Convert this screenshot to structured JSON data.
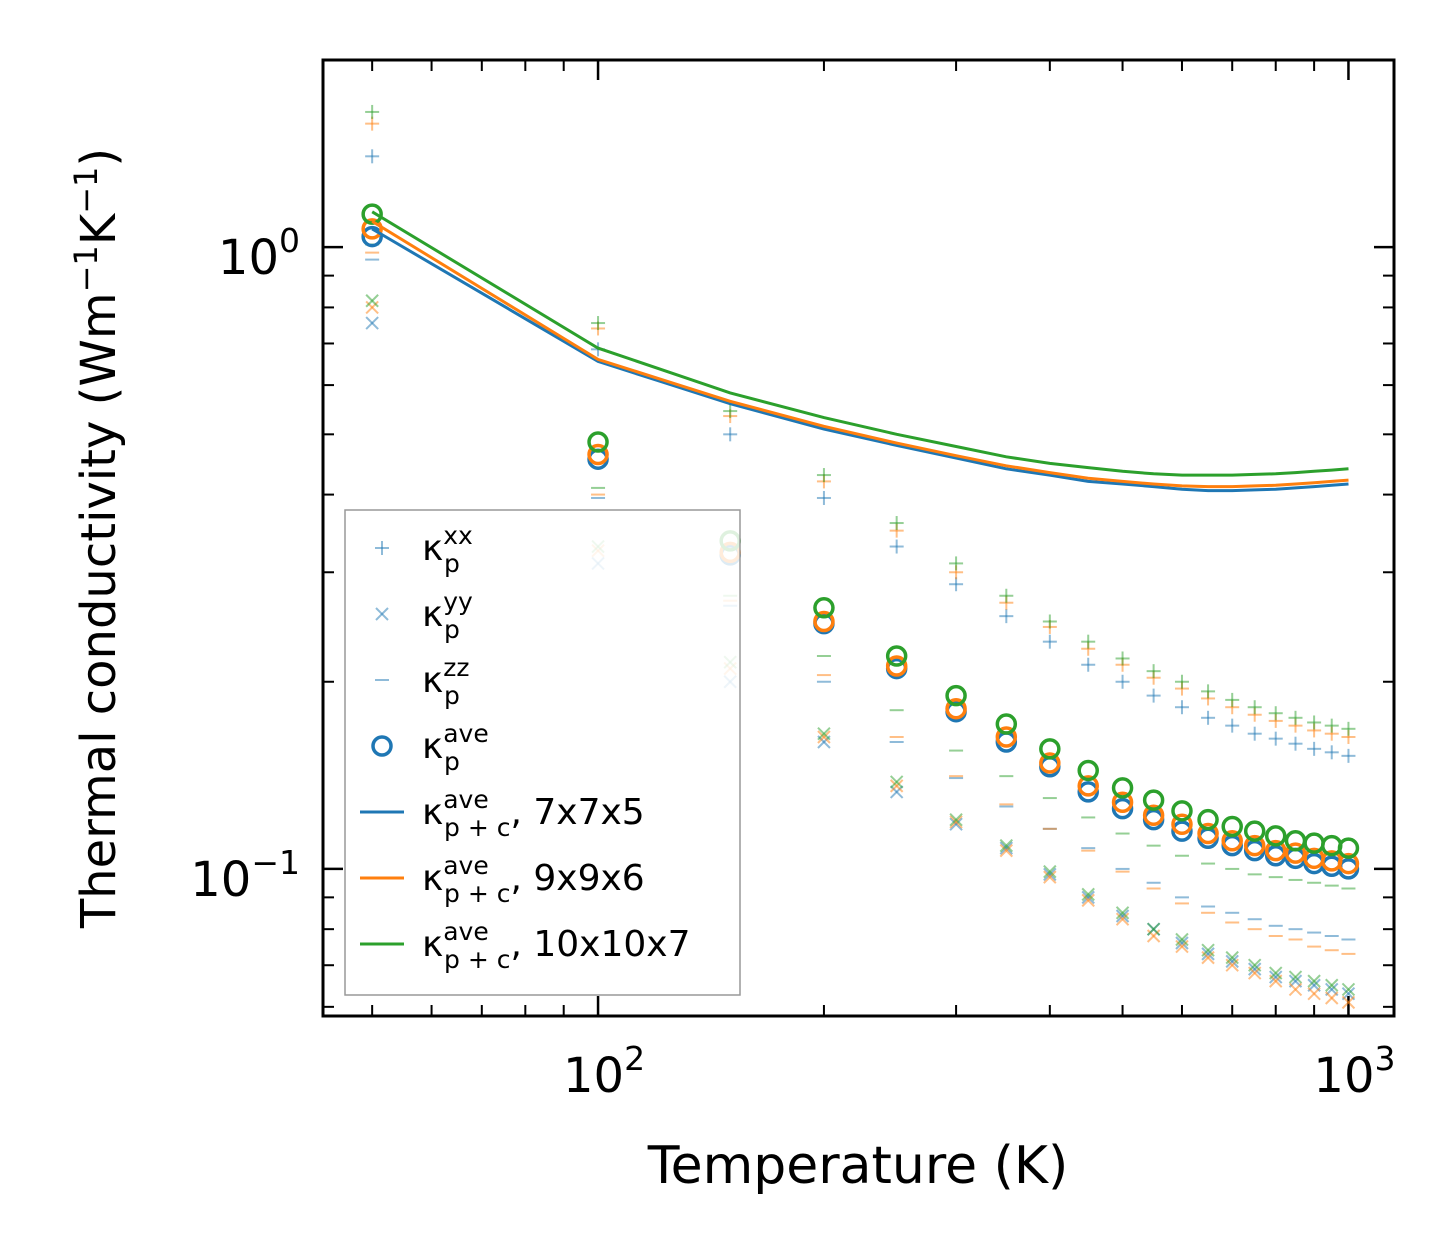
{
  "chart_data": {
    "type": "scatter",
    "title": "",
    "xlabel": "Temperature (K)",
    "ylabel_main": "Thermal conductivity (Wm",
    "ylabel_sup1": "−1",
    "ylabel_mid": "K",
    "ylabel_sup2": "−1",
    "ylabel_end": ")",
    "xscale": "log",
    "yscale": "log",
    "xlim": [
      43,
      1150
    ],
    "ylim": [
      0.058,
      2.0
    ],
    "grid": false,
    "legend_position": "left",
    "x_ticks": [
      {
        "base": "10",
        "exp": "2"
      },
      {
        "base": "10",
        "exp": "3"
      }
    ],
    "y_ticks": [
      {
        "base": "10",
        "exp": "0"
      },
      {
        "base": "10",
        "exp": "−1"
      }
    ],
    "colors": {
      "c7": "#1f77b4",
      "c9": "#ff7f0e",
      "c10": "#2ca02c"
    },
    "temperatures": [
      50,
      100,
      150,
      200,
      250,
      300,
      350,
      400,
      450,
      500,
      550,
      600,
      650,
      700,
      750,
      800,
      850,
      900,
      950,
      1000
    ],
    "legend": [
      {
        "sym": "κ",
        "sub": "p",
        "sup": "xx",
        "tail": "",
        "marker": "plus"
      },
      {
        "sym": "κ",
        "sub": "p",
        "sup": "yy",
        "tail": "",
        "marker": "cross"
      },
      {
        "sym": "κ",
        "sub": "p",
        "sup": "zz",
        "tail": "",
        "marker": "dash"
      },
      {
        "sym": "κ",
        "sub": "p",
        "sup": "ave",
        "tail": "",
        "marker": "circle"
      },
      {
        "sym": "κ",
        "sub": "p + c",
        "sup": "ave",
        "tail": ", 7x7x5",
        "marker": "line",
        "color": "#1f77b4"
      },
      {
        "sym": "κ",
        "sub": "p + c",
        "sup": "ave",
        "tail": ", 9x9x6",
        "marker": "line",
        "color": "#ff7f0e"
      },
      {
        "sym": "κ",
        "sub": "p + c",
        "sup": "ave",
        "tail": ", 10x10x7",
        "marker": "line",
        "color": "#2ca02c"
      }
    ],
    "series": [
      {
        "name": "7x7x5",
        "color": "#1f77b4",
        "kxx": [
          1.4,
          0.685,
          0.5,
          0.395,
          0.33,
          0.287,
          0.255,
          0.232,
          0.213,
          0.2,
          0.19,
          0.182,
          0.175,
          0.17,
          0.165,
          0.162,
          0.159,
          0.156,
          0.154,
          0.152
        ],
        "kyy": [
          0.755,
          0.31,
          0.2,
          0.16,
          0.133,
          0.118,
          0.108,
          0.098,
          0.09,
          0.084,
          0.08,
          0.076,
          0.073,
          0.071,
          0.069,
          0.067,
          0.066,
          0.065,
          0.064,
          0.063
        ],
        "kzz": [
          0.955,
          0.395,
          0.265,
          0.2,
          0.16,
          0.14,
          0.126,
          0.116,
          0.108,
          0.1,
          0.095,
          0.09,
          0.087,
          0.085,
          0.083,
          0.081,
          0.08,
          0.079,
          0.078,
          0.077
        ],
        "kave": [
          1.04,
          0.456,
          0.32,
          0.248,
          0.21,
          0.179,
          0.16,
          0.146,
          0.133,
          0.125,
          0.12,
          0.115,
          0.112,
          0.109,
          0.107,
          0.105,
          0.104,
          0.102,
          0.101,
          0.1
        ],
        "kpc": [
          1.07,
          0.655,
          0.56,
          0.51,
          0.48,
          0.458,
          0.44,
          0.43,
          0.42,
          0.416,
          0.412,
          0.408,
          0.406,
          0.406,
          0.407,
          0.408,
          0.41,
          0.412,
          0.414,
          0.416
        ]
      },
      {
        "name": "9x9x6",
        "color": "#ff7f0e",
        "kxx": [
          1.58,
          0.74,
          0.535,
          0.42,
          0.35,
          0.3,
          0.268,
          0.245,
          0.226,
          0.213,
          0.203,
          0.195,
          0.188,
          0.182,
          0.177,
          0.173,
          0.17,
          0.167,
          0.165,
          0.163
        ],
        "kyy": [
          0.8,
          0.325,
          0.21,
          0.163,
          0.136,
          0.119,
          0.107,
          0.097,
          0.089,
          0.083,
          0.078,
          0.075,
          0.072,
          0.07,
          0.068,
          0.066,
          0.064,
          0.063,
          0.062,
          0.061
        ],
        "kzz": [
          0.98,
          0.4,
          0.27,
          0.205,
          0.163,
          0.141,
          0.127,
          0.116,
          0.107,
          0.099,
          0.093,
          0.088,
          0.085,
          0.082,
          0.08,
          0.078,
          0.077,
          0.075,
          0.074,
          0.073
        ],
        "kave": [
          1.07,
          0.464,
          0.323,
          0.25,
          0.212,
          0.181,
          0.163,
          0.148,
          0.136,
          0.128,
          0.122,
          0.118,
          0.114,
          0.111,
          0.109,
          0.107,
          0.106,
          0.104,
          0.103,
          0.102
        ],
        "kpc": [
          1.1,
          0.66,
          0.565,
          0.515,
          0.484,
          0.462,
          0.445,
          0.434,
          0.425,
          0.42,
          0.416,
          0.413,
          0.412,
          0.412,
          0.413,
          0.414,
          0.416,
          0.418,
          0.42,
          0.422
        ]
      },
      {
        "name": "10x10x7",
        "color": "#2ca02c",
        "kxx": [
          1.65,
          0.755,
          0.545,
          0.43,
          0.36,
          0.31,
          0.275,
          0.25,
          0.232,
          0.218,
          0.208,
          0.2,
          0.193,
          0.187,
          0.182,
          0.178,
          0.175,
          0.172,
          0.17,
          0.168
        ],
        "kyy": [
          0.82,
          0.33,
          0.215,
          0.165,
          0.138,
          0.12,
          0.109,
          0.099,
          0.091,
          0.085,
          0.08,
          0.077,
          0.074,
          0.072,
          0.07,
          0.068,
          0.067,
          0.066,
          0.065,
          0.064
        ],
        "kzz": [
          1.01,
          0.41,
          0.275,
          0.22,
          0.18,
          0.155,
          0.141,
          0.13,
          0.121,
          0.114,
          0.109,
          0.105,
          0.102,
          0.1,
          0.098,
          0.097,
          0.096,
          0.095,
          0.094,
          0.093
        ],
        "kave": [
          1.13,
          0.486,
          0.337,
          0.263,
          0.22,
          0.19,
          0.171,
          0.156,
          0.144,
          0.135,
          0.129,
          0.124,
          0.12,
          0.117,
          0.115,
          0.113,
          0.111,
          0.11,
          0.109,
          0.108
        ],
        "kpc": [
          1.14,
          0.688,
          0.583,
          0.532,
          0.5,
          0.478,
          0.46,
          0.449,
          0.442,
          0.436,
          0.432,
          0.43,
          0.43,
          0.43,
          0.431,
          0.432,
          0.434,
          0.436,
          0.438,
          0.44
        ]
      }
    ]
  }
}
